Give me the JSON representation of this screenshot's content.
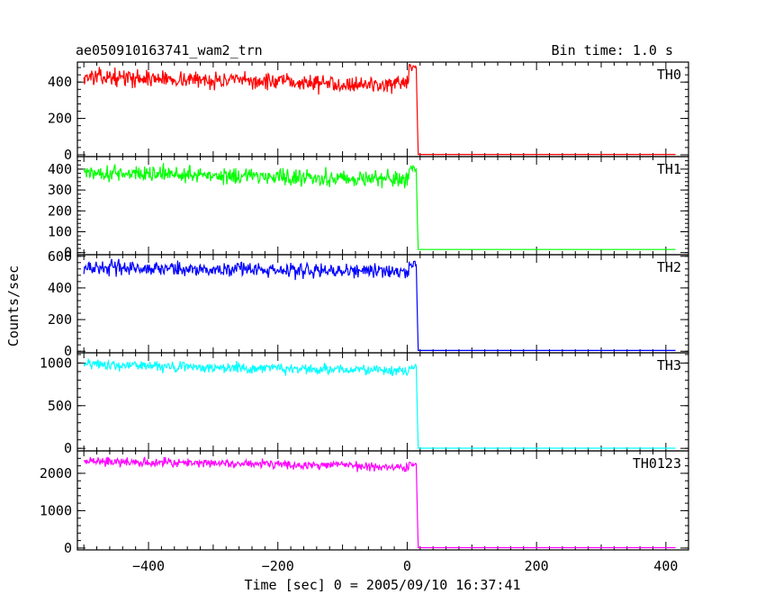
{
  "header": {
    "title": "ae050910163741_wam2_trn",
    "bin_time": "Bin time: 1.0 s"
  },
  "axes": {
    "ylabel": "Counts/sec",
    "xlabel": "Time [sec] 0 = 2005/09/10 16:37:41"
  },
  "chart_data": {
    "type": "line",
    "xlim": [
      -510,
      435
    ],
    "x_ticks": [
      -400,
      -200,
      0,
      200,
      400
    ],
    "x_tick_labels": [
      "−400",
      "−200",
      "0",
      "200",
      "400"
    ],
    "x_range": [
      -500,
      415
    ],
    "drop_time": 14,
    "grid": false,
    "panels": [
      {
        "name": "TH0",
        "color": "#ff0000",
        "ylim": [
          -10,
          510
        ],
        "y_ticks": [
          0,
          200,
          400
        ],
        "y_tick_labels": [
          "0",
          "200",
          "400"
        ],
        "level_start": 430,
        "level_end": 380,
        "noise": 40,
        "peak": 480,
        "post_level": 2
      },
      {
        "name": "TH1",
        "color": "#00ff00",
        "ylim": [
          -10,
          460
        ],
        "y_ticks": [
          0,
          100,
          200,
          300,
          400
        ],
        "y_tick_labels": [
          "0",
          "100",
          "200",
          "300",
          "400"
        ],
        "level_start": 385,
        "level_end": 350,
        "noise": 35,
        "peak": 400,
        "post_level": 15
      },
      {
        "name": "TH2",
        "color": "#0000ff",
        "ylim": [
          -10,
          610
        ],
        "y_ticks": [
          0,
          200,
          400,
          600
        ],
        "y_tick_labels": [
          "0",
          "200",
          "400",
          "600"
        ],
        "level_start": 530,
        "level_end": 500,
        "noise": 40,
        "peak": 550,
        "post_level": 5
      },
      {
        "name": "TH3",
        "color": "#00ffff",
        "ylim": [
          -30,
          1120
        ],
        "y_ticks": [
          0,
          500,
          1000
        ],
        "y_tick_labels": [
          "0",
          "500",
          "1000"
        ],
        "level_start": 985,
        "level_end": 900,
        "noise": 55,
        "peak": 960,
        "post_level": 2
      },
      {
        "name": "TH0123",
        "color": "#ff00ff",
        "ylim": [
          -50,
          2600
        ],
        "y_ticks": [
          0,
          1000,
          2000
        ],
        "y_tick_labels": [
          "0",
          "1000",
          "2000"
        ],
        "level_start": 2330,
        "level_end": 2180,
        "noise": 110,
        "peak": 2250,
        "post_level": 10
      }
    ]
  }
}
